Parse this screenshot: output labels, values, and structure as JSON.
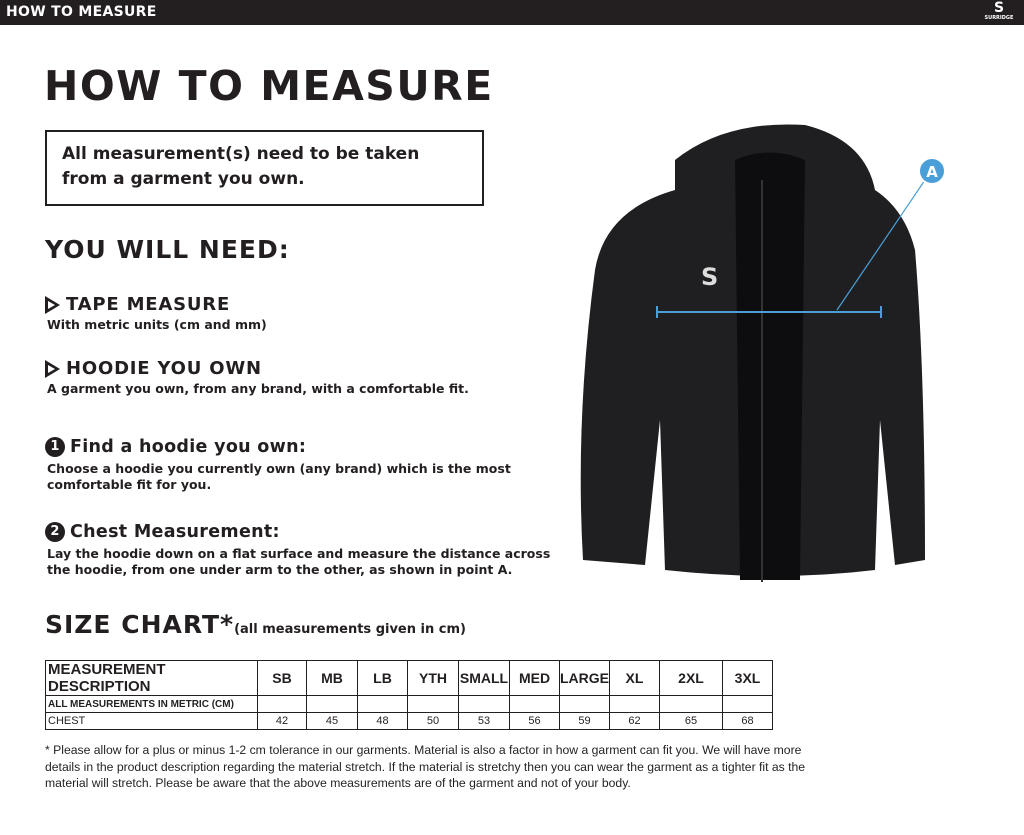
{
  "topbar": {
    "title": "HOW TO MEASURE",
    "logo_text": "SURRIDGE"
  },
  "title": "HOW TO MEASURE",
  "note": "All measurement(s) need to be taken from a garment you own.",
  "need": {
    "heading": "YOU WILL NEED:",
    "items": [
      {
        "title": "TAPE MEASURE",
        "desc": "With metric units (cm and mm)"
      },
      {
        "title": "HOODIE YOU OWN",
        "desc": "A garment you own, from any brand, with a comfortable fit."
      }
    ]
  },
  "steps": [
    {
      "num": "1",
      "title": "Find a hoodie you own:",
      "desc": "Choose a hoodie you currently own (any brand) which is the most comfortable fit for you."
    },
    {
      "num": "2",
      "title": "Chest Measurement:",
      "desc": "Lay the hoodie down on a flat surface and measure the distance across the hoodie, from one under arm to the other, as shown in point A."
    }
  ],
  "size_chart": {
    "title": "SIZE CHART*",
    "subtitle": "(all measurements given in cm)",
    "headers": [
      "MEASUREMENT DESCRIPTION",
      "SB",
      "MB",
      "LB",
      "YTH",
      "SMALL",
      "MED",
      "LARGE",
      "XL",
      "2XL",
      "3XL"
    ],
    "metric_label": "ALL MEASUREMENTS IN METRIC (CM)",
    "rows": [
      {
        "label": "CHEST",
        "values": [
          "42",
          "45",
          "48",
          "50",
          "53",
          "56",
          "59",
          "62",
          "65",
          "68"
        ]
      }
    ]
  },
  "footnote": "* Please allow for a plus or minus 1-2 cm tolerance in our garments. Material is also a factor in how a garment can fit you. We will have more details in the product description regarding the material stretch.  If the material is stretchy then you can wear the garment as a tighter fit as the material will stretch.  Please be aware that the above measurements are of the garment and not of your body.",
  "diagram": {
    "point_label": "A",
    "accent": "#4a9fd8",
    "garment_color": "#1f1f22"
  }
}
